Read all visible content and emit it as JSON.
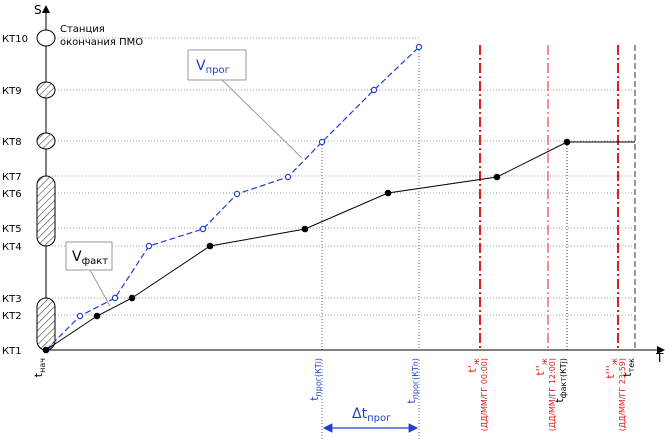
{
  "axes": {
    "y_label": "S",
    "x_label": "T"
  },
  "station_note": [
    "Станция",
    "окончания ПМО"
  ],
  "checkpoints": [
    "КТ1",
    "КТ2",
    "КТ3",
    "КТ4",
    "КТ5",
    "КТ6",
    "КТ7",
    "КТ8",
    "КТ9",
    "КТ10"
  ],
  "legend": {
    "forecast": {
      "main": "V",
      "sub": "прог"
    },
    "actual": {
      "main": "V",
      "sub": "факт"
    }
  },
  "time_labels": [
    {
      "main": "t",
      "sub": "нач"
    },
    {
      "main": "t",
      "sub": "прог(КТi)"
    },
    {
      "main": "t",
      "sub": "прог(КТn)"
    },
    {
      "main": "t'",
      "sub": "ж",
      "note": "(ДД/ММ/ГГ 00:00)"
    },
    {
      "main": "t''",
      "sub": "ж",
      "note": "(ДД/ММ/ГГ 12:00)"
    },
    {
      "main": "t",
      "sub": "факт(КТj)"
    },
    {
      "main": "t'''",
      "sub": "ж",
      "note": "(ДД/ММ/ГГ 23:59)"
    },
    {
      "main": "t",
      "sub": "тек"
    }
  ],
  "delta": {
    "main": "Δt",
    "sub": "прог"
  }
}
